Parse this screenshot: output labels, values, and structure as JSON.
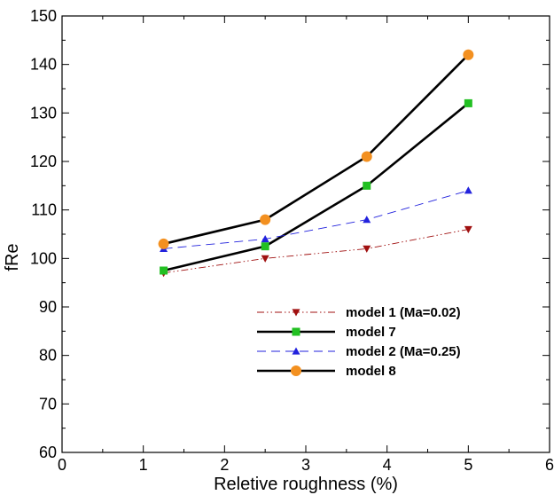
{
  "chart_data": {
    "type": "line",
    "title": "",
    "xlabel": "Reletive roughness (%)",
    "ylabel": "fRe",
    "xlim": [
      0,
      6
    ],
    "ylim": [
      60,
      150
    ],
    "xticks": [
      0,
      1,
      2,
      3,
      4,
      5,
      6
    ],
    "yticks": [
      60,
      70,
      80,
      90,
      100,
      110,
      120,
      130,
      140,
      150
    ],
    "grid": false,
    "legend_position": "lower-right",
    "series": [
      {
        "name": "model 1 (Ma=0.02)",
        "x": [
          1.25,
          2.5,
          3.75,
          5
        ],
        "y": [
          97,
          100,
          102,
          106
        ],
        "color": "#a01010",
        "marker": "triangle-down",
        "line": "dash-dot-dot"
      },
      {
        "name": "model 7",
        "x": [
          1.25,
          2.5,
          3.75,
          5
        ],
        "y": [
          97.5,
          102.5,
          115,
          132
        ],
        "color": "#000000",
        "marker_color": "#22c022",
        "marker": "square",
        "line": "solid"
      },
      {
        "name": "model 2 (Ma=0.25)",
        "x": [
          1.25,
          2.5,
          3.75,
          5
        ],
        "y": [
          102,
          104,
          108,
          114
        ],
        "color": "#2222dd",
        "marker": "triangle-up",
        "line": "dashed"
      },
      {
        "name": "model 8",
        "x": [
          1.25,
          2.5,
          3.75,
          5
        ],
        "y": [
          103,
          108,
          121,
          142
        ],
        "color": "#000000",
        "marker_color": "#f39020",
        "marker": "circle",
        "line": "solid"
      }
    ]
  }
}
